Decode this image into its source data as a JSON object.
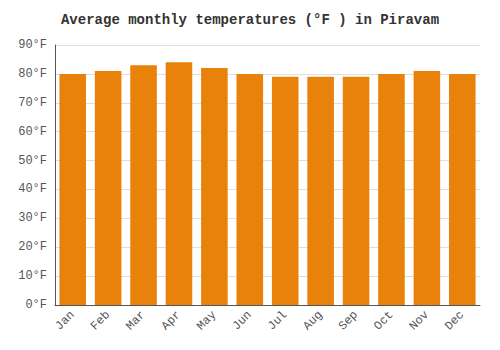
{
  "chart_data": {
    "type": "bar",
    "title": "Average monthly temperatures (°F ) in Piravam",
    "categories": [
      "Jan",
      "Feb",
      "Mar",
      "Apr",
      "May",
      "Jun",
      "Jul",
      "Aug",
      "Sep",
      "Oct",
      "Nov",
      "Dec"
    ],
    "values": [
      80,
      81,
      83,
      84,
      82,
      80,
      79,
      79,
      79,
      80,
      81,
      80
    ],
    "color": "#E8820A",
    "ylim": [
      0,
      90
    ],
    "yticks": [
      {
        "value": 0,
        "label": "0°F"
      },
      {
        "value": 10,
        "label": "10°F"
      },
      {
        "value": 20,
        "label": "20°F"
      },
      {
        "value": 30,
        "label": "30°F"
      },
      {
        "value": 40,
        "label": "40°F"
      },
      {
        "value": 50,
        "label": "50°F"
      },
      {
        "value": 60,
        "label": "60°F"
      },
      {
        "value": 70,
        "label": "70°F"
      },
      {
        "value": 80,
        "label": "80°F"
      },
      {
        "value": 90,
        "label": "90°F"
      }
    ],
    "grid": true
  }
}
